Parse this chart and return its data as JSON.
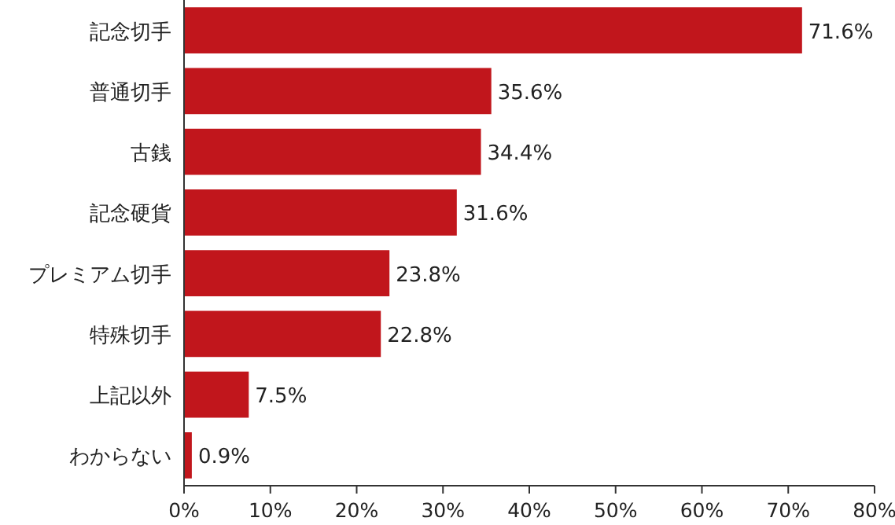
{
  "chart_data": {
    "type": "bar",
    "orientation": "horizontal",
    "categories": [
      "記念切手",
      "普通切手",
      "古銭",
      "記念硬貨",
      "プレミアム切手",
      "特殊切手",
      "上記以外",
      "わからない"
    ],
    "values": [
      71.6,
      35.6,
      34.4,
      31.6,
      23.8,
      22.8,
      7.5,
      0.9
    ],
    "value_labels": [
      "71.6%",
      "35.6%",
      "34.4%",
      "31.6%",
      "23.8%",
      "22.8%",
      "7.5%",
      "0.9%"
    ],
    "color": "#c1161c",
    "xlim": [
      0,
      80
    ],
    "xticks": [
      {
        "value": 0,
        "label": "0%"
      },
      {
        "value": 10,
        "label": "10%"
      },
      {
        "value": 20,
        "label": "20%"
      },
      {
        "value": 30,
        "label": "30%"
      },
      {
        "value": 40,
        "label": "40%"
      },
      {
        "value": 50,
        "label": "50%"
      },
      {
        "value": 60,
        "label": "60%"
      },
      {
        "value": 70,
        "label": "70%"
      },
      {
        "value": 80,
        "label": "80%"
      }
    ],
    "grid": false
  }
}
